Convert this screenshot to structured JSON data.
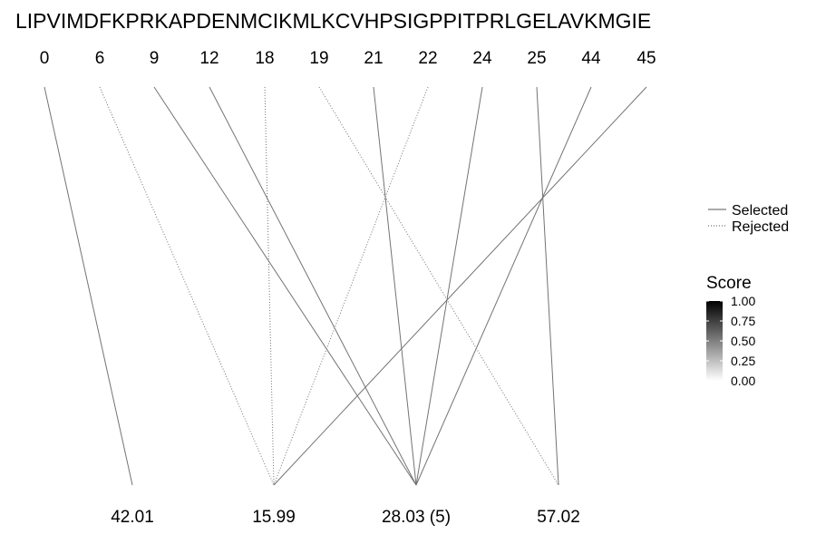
{
  "chart_data": {
    "type": "bipartite-line",
    "sequence": "LIPVIMDFKPRKAPDENMCIKMLKCVHPSIGPPITPRLGELAVKMGIE",
    "top_labels": [
      "0",
      "6",
      "9",
      "12",
      "18",
      "19",
      "21",
      "22",
      "24",
      "25",
      "44",
      "45"
    ],
    "bottom_labels": [
      "42.01",
      "15.99",
      "28.03 (5)",
      "57.02"
    ],
    "links": [
      {
        "top": "0",
        "bottom": "42.01",
        "status": "Selected",
        "score": 0.55
      },
      {
        "top": "6",
        "bottom": "15.99",
        "status": "Rejected",
        "score": 0.55
      },
      {
        "top": "9",
        "bottom": "28.03 (5)",
        "status": "Selected",
        "score": 0.55
      },
      {
        "top": "12",
        "bottom": "28.03 (5)",
        "status": "Selected",
        "score": 0.55
      },
      {
        "top": "18",
        "bottom": "15.99",
        "status": "Rejected",
        "score": 0.55
      },
      {
        "top": "19",
        "bottom": "57.02",
        "status": "Rejected",
        "score": 0.55
      },
      {
        "top": "21",
        "bottom": "28.03 (5)",
        "status": "Selected",
        "score": 0.55
      },
      {
        "top": "22",
        "bottom": "15.99",
        "status": "Rejected",
        "score": 0.55
      },
      {
        "top": "24",
        "bottom": "28.03 (5)",
        "status": "Selected",
        "score": 0.55
      },
      {
        "top": "25",
        "bottom": "57.02",
        "status": "Selected",
        "score": 0.55
      },
      {
        "top": "44",
        "bottom": "28.03 (5)",
        "status": "Selected",
        "score": 0.55
      },
      {
        "top": "45",
        "bottom": "15.99",
        "status": "Selected",
        "score": 0.55
      }
    ],
    "legend": {
      "linetype_entries": [
        "Selected",
        "Rejected"
      ],
      "score_title": "Score",
      "score_ticks": [
        "1.00",
        "0.75",
        "0.50",
        "0.25",
        "0.00"
      ],
      "score_range": [
        0,
        1
      ],
      "score_colors": {
        "low": "#ffffff",
        "high": "#000000"
      },
      "placement": "right"
    }
  }
}
